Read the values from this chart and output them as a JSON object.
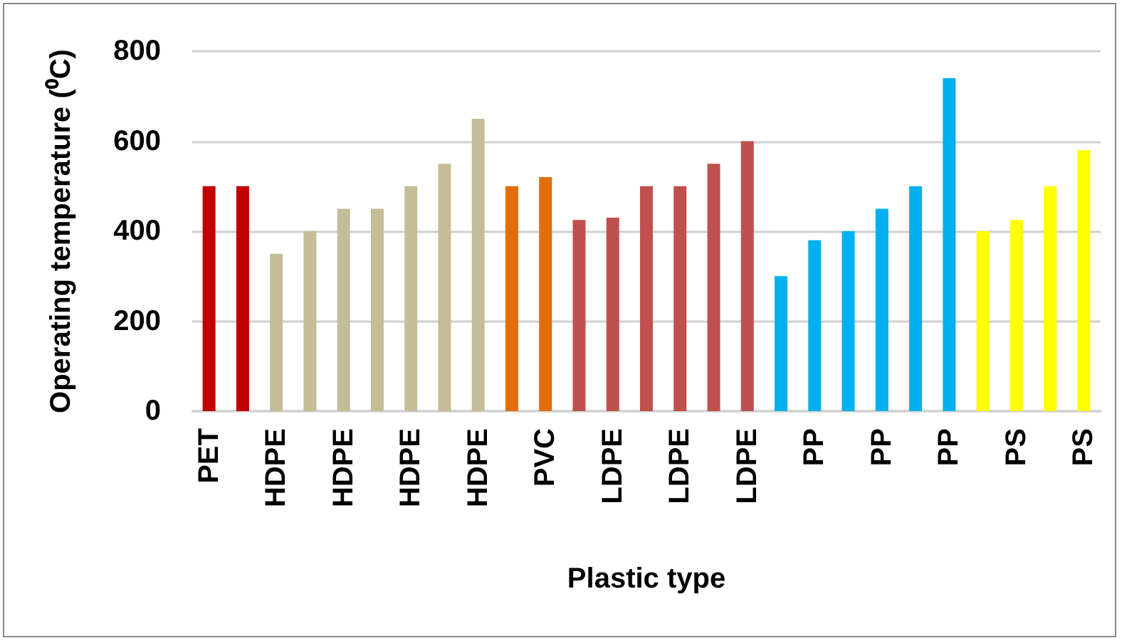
{
  "chart_data": {
    "type": "bar",
    "xlabel": "Plastic type",
    "ylabel": "Operating temperature (⁰C)",
    "categories": [
      "PET",
      null,
      "HDPE",
      null,
      "HDPE",
      null,
      "HDPE",
      null,
      "HDPE",
      null,
      "PVC",
      null,
      "LDPE",
      null,
      "LDPE",
      null,
      "LDPE",
      null,
      "PP",
      null,
      "PP",
      null,
      "PP",
      null,
      "PS",
      null,
      "PS"
    ],
    "values": [
      500,
      500,
      350,
      400,
      450,
      450,
      500,
      550,
      650,
      500,
      520,
      425,
      430,
      500,
      500,
      550,
      600,
      300,
      380,
      400,
      450,
      500,
      740,
      400,
      425,
      500,
      580
    ],
    "colors": [
      "#c00000",
      "#c00000",
      "#c4bd97",
      "#c4bd97",
      "#c4bd97",
      "#c4bd97",
      "#c4bd97",
      "#c4bd97",
      "#c4bd97",
      "#e46c0a",
      "#e46c0a",
      "#c0504d",
      "#c0504d",
      "#c0504d",
      "#c0504d",
      "#c0504d",
      "#c0504d",
      "#00b0f0",
      "#00b0f0",
      "#00b0f0",
      "#00b0f0",
      "#00b0f0",
      "#00b0f0",
      "#ffff00",
      "#ffff00",
      "#ffff00",
      "#ffff00"
    ],
    "ylim": [
      0,
      800
    ],
    "yticks": [
      0,
      200,
      400,
      600,
      800
    ],
    "grid": "y"
  }
}
